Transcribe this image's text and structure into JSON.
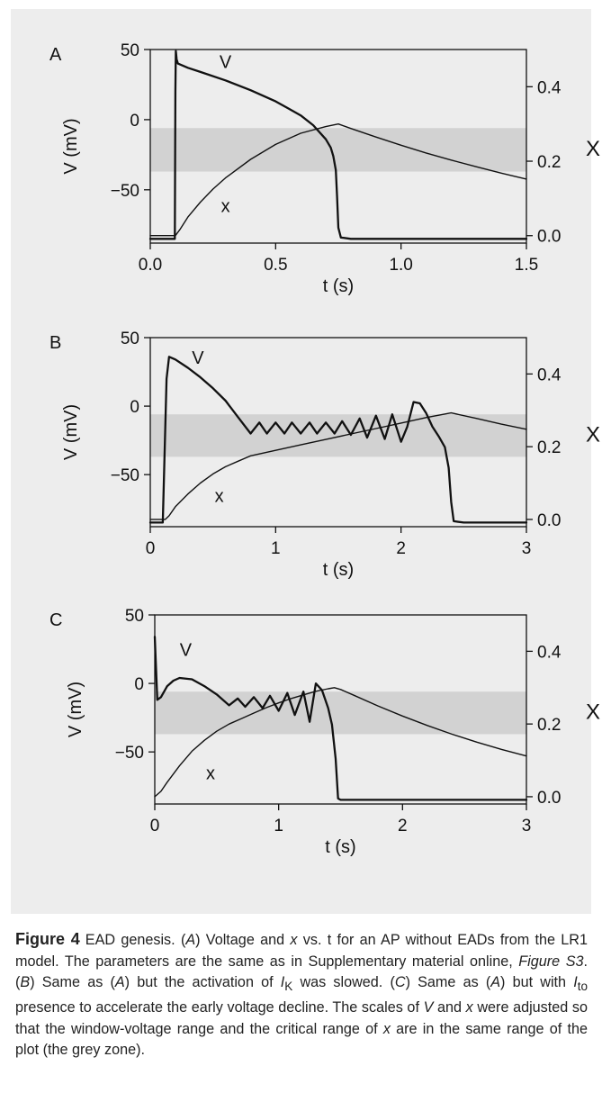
{
  "chart_data": [
    {
      "type": "line",
      "panel_label": "A",
      "xlabel": "t (s)",
      "ylabel": "V (mV)",
      "y2label": "X",
      "xlim": [
        0,
        1.5
      ],
      "ylim": [
        -88,
        50
      ],
      "y2lim": [
        -0.02,
        0.5
      ],
      "xticks": [
        0,
        0.5,
        1.0,
        1.5
      ],
      "xtick_labels": [
        "0.0",
        "0.5",
        "1.0",
        "1.5"
      ],
      "yticks": [
        50,
        0,
        -50
      ],
      "ytick_labels": [
        "50",
        "0",
        "−50"
      ],
      "y2ticks": [
        0.0,
        0.2,
        0.4
      ],
      "y2tick_labels": [
        "0.0",
        "0.2",
        "0.4"
      ],
      "shaded_band_V": [
        -37,
        -6
      ],
      "grid": false,
      "series": [
        {
          "name": "V",
          "axis": "left",
          "x": [
            0,
            0.098,
            0.1,
            0.102,
            0.105,
            0.11,
            0.15,
            0.2,
            0.3,
            0.4,
            0.5,
            0.55,
            0.6,
            0.65,
            0.7,
            0.72,
            0.73,
            0.74,
            0.745,
            0.75,
            0.76,
            0.8,
            1.0,
            1.5
          ],
          "y": [
            -85,
            -85,
            20,
            49,
            43,
            40,
            37,
            34,
            28,
            21,
            13,
            8,
            3,
            -4,
            -14,
            -20,
            -26,
            -36,
            -55,
            -77,
            -84,
            -85,
            -85,
            -85
          ]
        },
        {
          "name": "x",
          "axis": "right",
          "x": [
            0,
            0.1,
            0.12,
            0.15,
            0.2,
            0.25,
            0.3,
            0.4,
            0.5,
            0.6,
            0.7,
            0.75,
            0.8,
            0.9,
            1.0,
            1.1,
            1.2,
            1.3,
            1.4,
            1.5
          ],
          "y": [
            0.0,
            0.0,
            0.018,
            0.05,
            0.09,
            0.125,
            0.155,
            0.205,
            0.245,
            0.275,
            0.293,
            0.3,
            0.288,
            0.265,
            0.243,
            0.222,
            0.203,
            0.185,
            0.168,
            0.152
          ]
        }
      ],
      "annotations": [
        {
          "text": "V",
          "x": 0.3,
          "y": 37
        },
        {
          "text": "x",
          "x": 0.3,
          "y": -66
        }
      ]
    },
    {
      "type": "line",
      "panel_label": "B",
      "xlabel": "t (s)",
      "ylabel": "V (mV)",
      "y2label": "X",
      "xlim": [
        0,
        3
      ],
      "ylim": [
        -88,
        50
      ],
      "y2lim": [
        -0.02,
        0.5
      ],
      "xticks": [
        0,
        1,
        2,
        3
      ],
      "xtick_labels": [
        "0",
        "1",
        "2",
        "3"
      ],
      "yticks": [
        50,
        0,
        -50
      ],
      "ytick_labels": [
        "50",
        "0",
        "−50"
      ],
      "y2ticks": [
        0.0,
        0.2,
        0.4
      ],
      "y2tick_labels": [
        "0.0",
        "0.2",
        "0.4"
      ],
      "shaded_band_V": [
        -37,
        -6
      ],
      "grid": false,
      "series": [
        {
          "name": "V",
          "axis": "left",
          "x": [
            0,
            0.1,
            0.13,
            0.15,
            0.2,
            0.3,
            0.4,
            0.5,
            0.6,
            0.7,
            0.8,
            0.87,
            0.93,
            1.0,
            1.07,
            1.13,
            1.2,
            1.27,
            1.33,
            1.4,
            1.47,
            1.53,
            1.6,
            1.67,
            1.73,
            1.8,
            1.87,
            1.93,
            2.0,
            2.05,
            2.1,
            2.15,
            2.2,
            2.25,
            2.3,
            2.35,
            2.38,
            2.4,
            2.42,
            2.5,
            3.0
          ],
          "y": [
            -85,
            -85,
            20,
            36,
            34,
            28,
            21,
            13,
            4,
            -8,
            -20,
            -12,
            -20,
            -12,
            -20,
            -12,
            -20,
            -12,
            -20,
            -12,
            -20,
            -11,
            -21,
            -9,
            -23,
            -7,
            -24,
            -6,
            -26,
            -15,
            3,
            2,
            -5,
            -15,
            -22,
            -30,
            -45,
            -70,
            -84,
            -85,
            -85
          ]
        },
        {
          "name": "x",
          "axis": "right",
          "x": [
            0,
            0.12,
            0.15,
            0.2,
            0.3,
            0.4,
            0.5,
            0.6,
            0.7,
            0.8,
            1.0,
            1.2,
            1.4,
            1.6,
            1.8,
            2.0,
            2.2,
            2.4,
            2.6,
            2.8,
            3.0
          ],
          "y": [
            0.0,
            0.0,
            0.01,
            0.035,
            0.07,
            0.1,
            0.125,
            0.145,
            0.16,
            0.175,
            0.19,
            0.205,
            0.22,
            0.235,
            0.25,
            0.265,
            0.28,
            0.293,
            0.278,
            0.262,
            0.248
          ]
        }
      ],
      "annotations": [
        {
          "text": "V",
          "x": 0.38,
          "y": 31
        },
        {
          "text": "x",
          "x": 0.55,
          "y": -70
        }
      ]
    },
    {
      "type": "line",
      "panel_label": "C",
      "xlabel": "t (s)",
      "ylabel": "V (mV)",
      "y2label": "X",
      "xlim": [
        0,
        3
      ],
      "ylim": [
        -88,
        50
      ],
      "y2lim": [
        -0.02,
        0.5
      ],
      "xticks": [
        0,
        1,
        2,
        3
      ],
      "xtick_labels": [
        "0",
        "1",
        "2",
        "3"
      ],
      "yticks": [
        50,
        0,
        -50
      ],
      "ytick_labels": [
        "50",
        "0",
        "−50"
      ],
      "y2ticks": [
        0.0,
        0.2,
        0.4
      ],
      "y2tick_labels": [
        "0.0",
        "0.2",
        "0.4"
      ],
      "shaded_band_V": [
        -37,
        -6
      ],
      "grid": false,
      "series": [
        {
          "name": "V",
          "axis": "left",
          "x": [
            0,
            0.02,
            0.05,
            0.1,
            0.15,
            0.2,
            0.3,
            0.4,
            0.5,
            0.6,
            0.67,
            0.73,
            0.8,
            0.87,
            0.93,
            1.0,
            1.07,
            1.13,
            1.2,
            1.25,
            1.3,
            1.35,
            1.4,
            1.43,
            1.46,
            1.48,
            1.5,
            2.0,
            3.0
          ],
          "y": [
            34,
            -12,
            -10,
            -2,
            2,
            4,
            3,
            -2,
            -8,
            -16,
            -11,
            -17,
            -10,
            -18,
            -9,
            -20,
            -7,
            -23,
            -6,
            -28,
            0,
            -5,
            -18,
            -30,
            -55,
            -84,
            -85,
            -85,
            -85
          ]
        },
        {
          "name": "x",
          "axis": "right",
          "x": [
            0,
            0.05,
            0.1,
            0.2,
            0.3,
            0.4,
            0.5,
            0.6,
            0.7,
            0.8,
            0.9,
            1.0,
            1.1,
            1.2,
            1.3,
            1.4,
            1.45,
            1.5,
            1.6,
            1.8,
            2.0,
            2.2,
            2.4,
            2.6,
            2.8,
            3.0
          ],
          "y": [
            0.0,
            0.015,
            0.04,
            0.085,
            0.125,
            0.155,
            0.18,
            0.2,
            0.215,
            0.23,
            0.245,
            0.258,
            0.27,
            0.28,
            0.29,
            0.297,
            0.3,
            0.295,
            0.28,
            0.25,
            0.222,
            0.196,
            0.172,
            0.15,
            0.13,
            0.112
          ]
        }
      ],
      "annotations": [
        {
          "text": "V",
          "x": 0.25,
          "y": 20
        },
        {
          "text": "x",
          "x": 0.45,
          "y": -70
        }
      ]
    }
  ],
  "caption": {
    "label": "Figure 4",
    "title": "EAD genesis.",
    "s1_pre": "(",
    "s1_A": "A",
    "s1_mid": ") Voltage and ",
    "s1_x": "x",
    "s1_post": " vs. t for an AP without EADs from the LR1 model. The parameters are the same as in Supplementary material online, ",
    "s1_fig": "Figure S3",
    "s1_end": ". (",
    "s2_B": "B",
    "s2_mid": ") Same as (",
    "s2_A": "A",
    "s2_post": ") but the activation of ",
    "s2_I": "I",
    "s2_sub": "K",
    "s2_end": " was slowed. (",
    "s3_C": "C",
    "s3_mid": ") Same as (",
    "s3_A": "A",
    "s3_post": ") but with ",
    "s3_I": "I",
    "s3_sub": "to",
    "s3_end": " presence to accelerate the early voltage decline. The scales of ",
    "s4_V": "V",
    "s4_and": " and ",
    "s4_x": "x",
    "s4_end": " were adjusted so that the window-voltage range and the critical range of ",
    "s5_x": "x",
    "s5_end": " are in the same range of the plot (the grey zone)."
  },
  "colors": {
    "figure_bg": "#ededed",
    "band": "#d2d2d2",
    "line": "#111111"
  }
}
